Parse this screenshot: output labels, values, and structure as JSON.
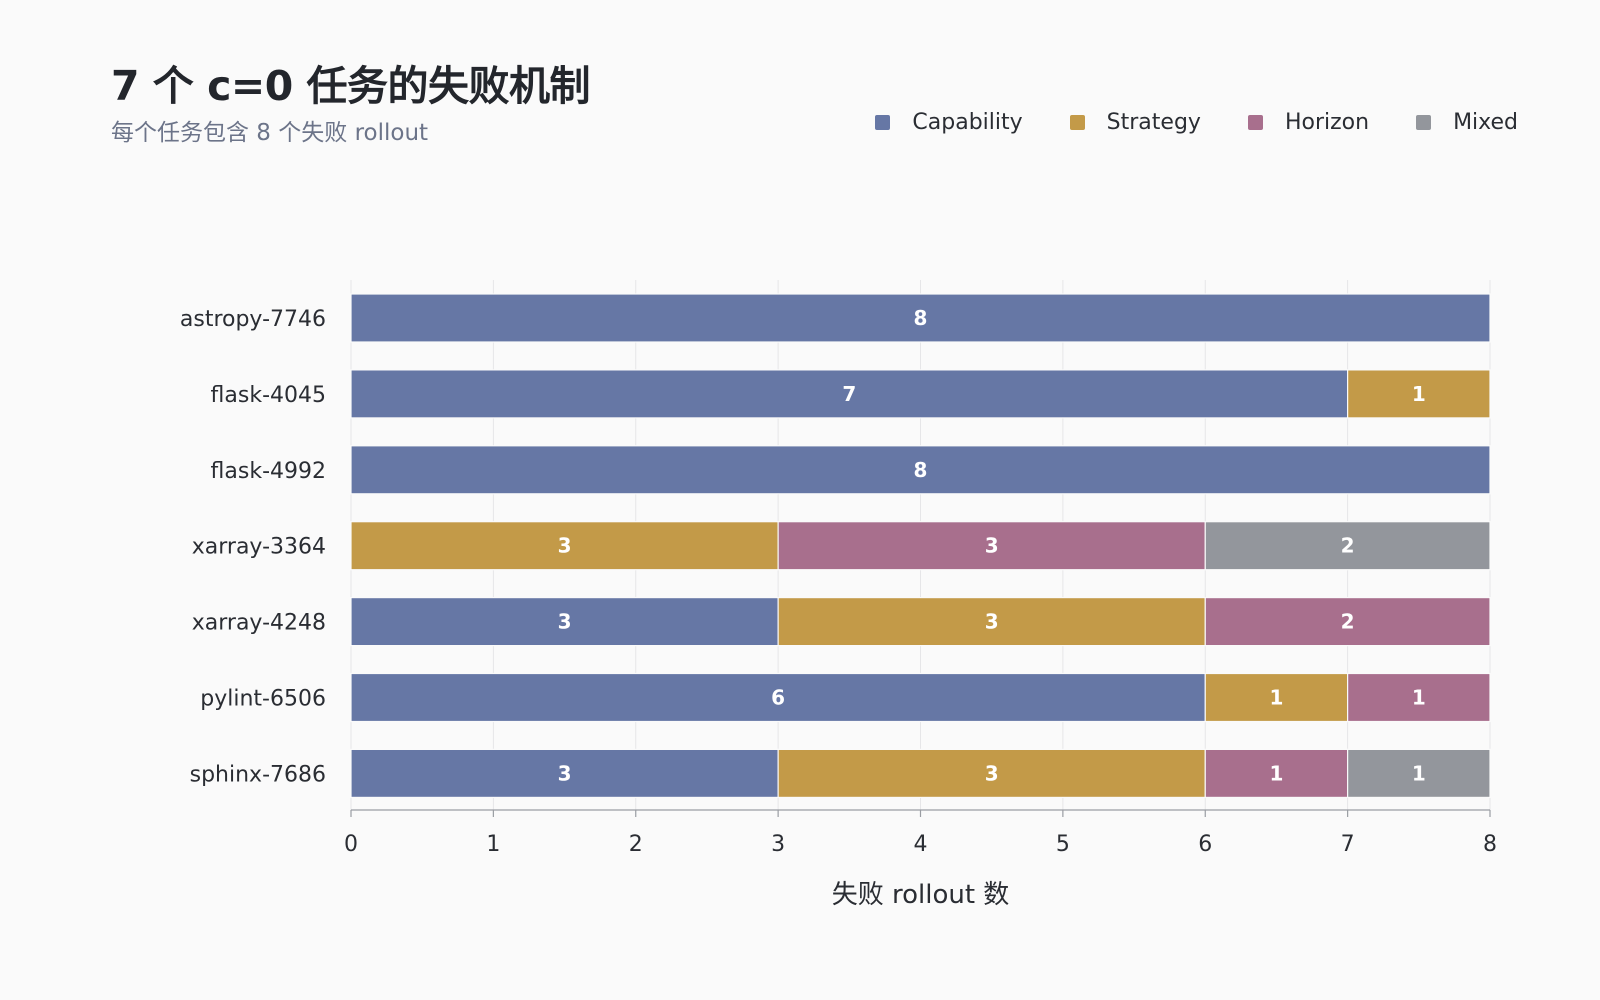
{
  "chart_data": {
    "type": "bar",
    "orientation": "horizontal",
    "stacked": true,
    "title": "7 个 c=0 任务的失败机制",
    "subtitle": "每个任务包含 8 个失败 rollout",
    "xlabel": "失败 rollout 数",
    "ylabel": "",
    "xlim": [
      0,
      8
    ],
    "xticks": [
      0,
      1,
      2,
      3,
      4,
      5,
      6,
      7,
      8
    ],
    "grid": true,
    "legend_position": "top-right",
    "categories": [
      "astropy-7746",
      "flask-4045",
      "flask-4992",
      "xarray-3364",
      "xarray-4248",
      "pylint-6506",
      "sphinx-7686"
    ],
    "series": [
      {
        "name": "Capability",
        "color": "#6677a5",
        "values": [
          8,
          7,
          8,
          0,
          3,
          6,
          3
        ]
      },
      {
        "name": "Strategy",
        "color": "#c39a48",
        "values": [
          0,
          1,
          0,
          3,
          3,
          1,
          3
        ]
      },
      {
        "name": "Horizon",
        "color": "#a86f8d",
        "values": [
          0,
          0,
          0,
          3,
          2,
          1,
          1
        ]
      },
      {
        "name": "Mixed",
        "color": "#93969c",
        "values": [
          0,
          0,
          0,
          2,
          0,
          0,
          1
        ]
      }
    ]
  }
}
